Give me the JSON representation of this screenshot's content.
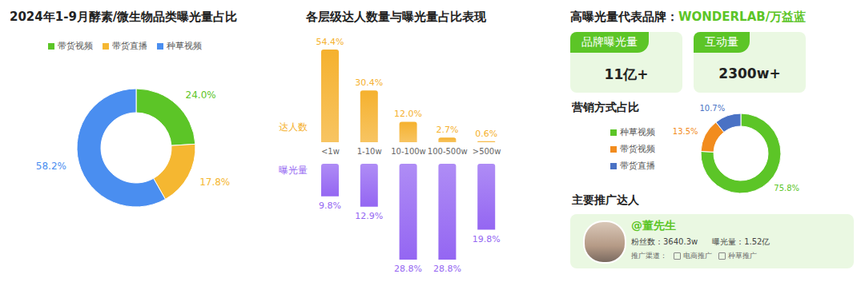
{
  "chart_data": [
    {
      "type": "pie",
      "title": "2024年1-9月酵素/微生物品类曝光量占比",
      "categories": [
        "带货视频",
        "带货直播",
        "种草视频"
      ],
      "values": [
        24.0,
        17.8,
        58.2
      ],
      "value_labels": [
        "24.0%",
        "17.8%",
        "58.2%"
      ],
      "colors": [
        "#5cc527",
        "#f5b731",
        "#4a8ef0"
      ],
      "data_labels": true,
      "legend": "top-left"
    },
    {
      "type": "bar",
      "title": "各层级达人数量与曝光量占比表现",
      "categories": [
        "<1w",
        "1-10w",
        "10-100w",
        "100-500w",
        ">500w"
      ],
      "series": [
        {
          "name": "达人数",
          "color": "#f5b12e",
          "values": [
            54.4,
            30.4,
            12.0,
            2.7,
            0.6
          ],
          "value_labels": [
            "54.4%",
            "30.4%",
            "12.0%",
            "2.7%",
            "0.6%"
          ]
        },
        {
          "name": "曝光量",
          "color": "#9466f2",
          "values": [
            9.8,
            12.9,
            28.8,
            28.8,
            19.8
          ],
          "value_labels": [
            "9.8%",
            "12.9%",
            "28.8%",
            "28.8%",
            "19.8%"
          ],
          "axis": "y2"
        }
      ],
      "ylim": [
        0,
        54.4
      ],
      "y2lim": [
        0,
        28.8
      ],
      "data_labels": true,
      "tick_labels": "x"
    },
    {
      "type": "pie",
      "title": "营销方式占比",
      "categories": [
        "种草视频",
        "带货视频",
        "带货直播"
      ],
      "values": [
        75.8,
        13.5,
        10.7
      ],
      "value_labels": [
        "75.8%",
        "13.5%",
        "10.7%"
      ],
      "colors": [
        "#5cc527",
        "#f28c1e",
        "#4a72c4"
      ],
      "data_labels": true,
      "legend": "left"
    }
  ],
  "panel": {
    "title": "高曝光量代表品牌：",
    "brand": "WONDERLAB/万益蓝",
    "metrics": [
      {
        "label": "品牌曝光量",
        "value": "11亿+"
      },
      {
        "label": "互动量",
        "value": "2300w+"
      }
    ],
    "influencer_title": "主要推广达人",
    "influencer": {
      "name": "@董先生",
      "stats": [
        {
          "label": "粉丝数：",
          "value": "3640.3w"
        },
        {
          "label": "曝光量：",
          "value": "1.52亿"
        }
      ],
      "channel_label": "推广渠道：",
      "channels": [
        "电商推广",
        "种草推广"
      ]
    }
  }
}
